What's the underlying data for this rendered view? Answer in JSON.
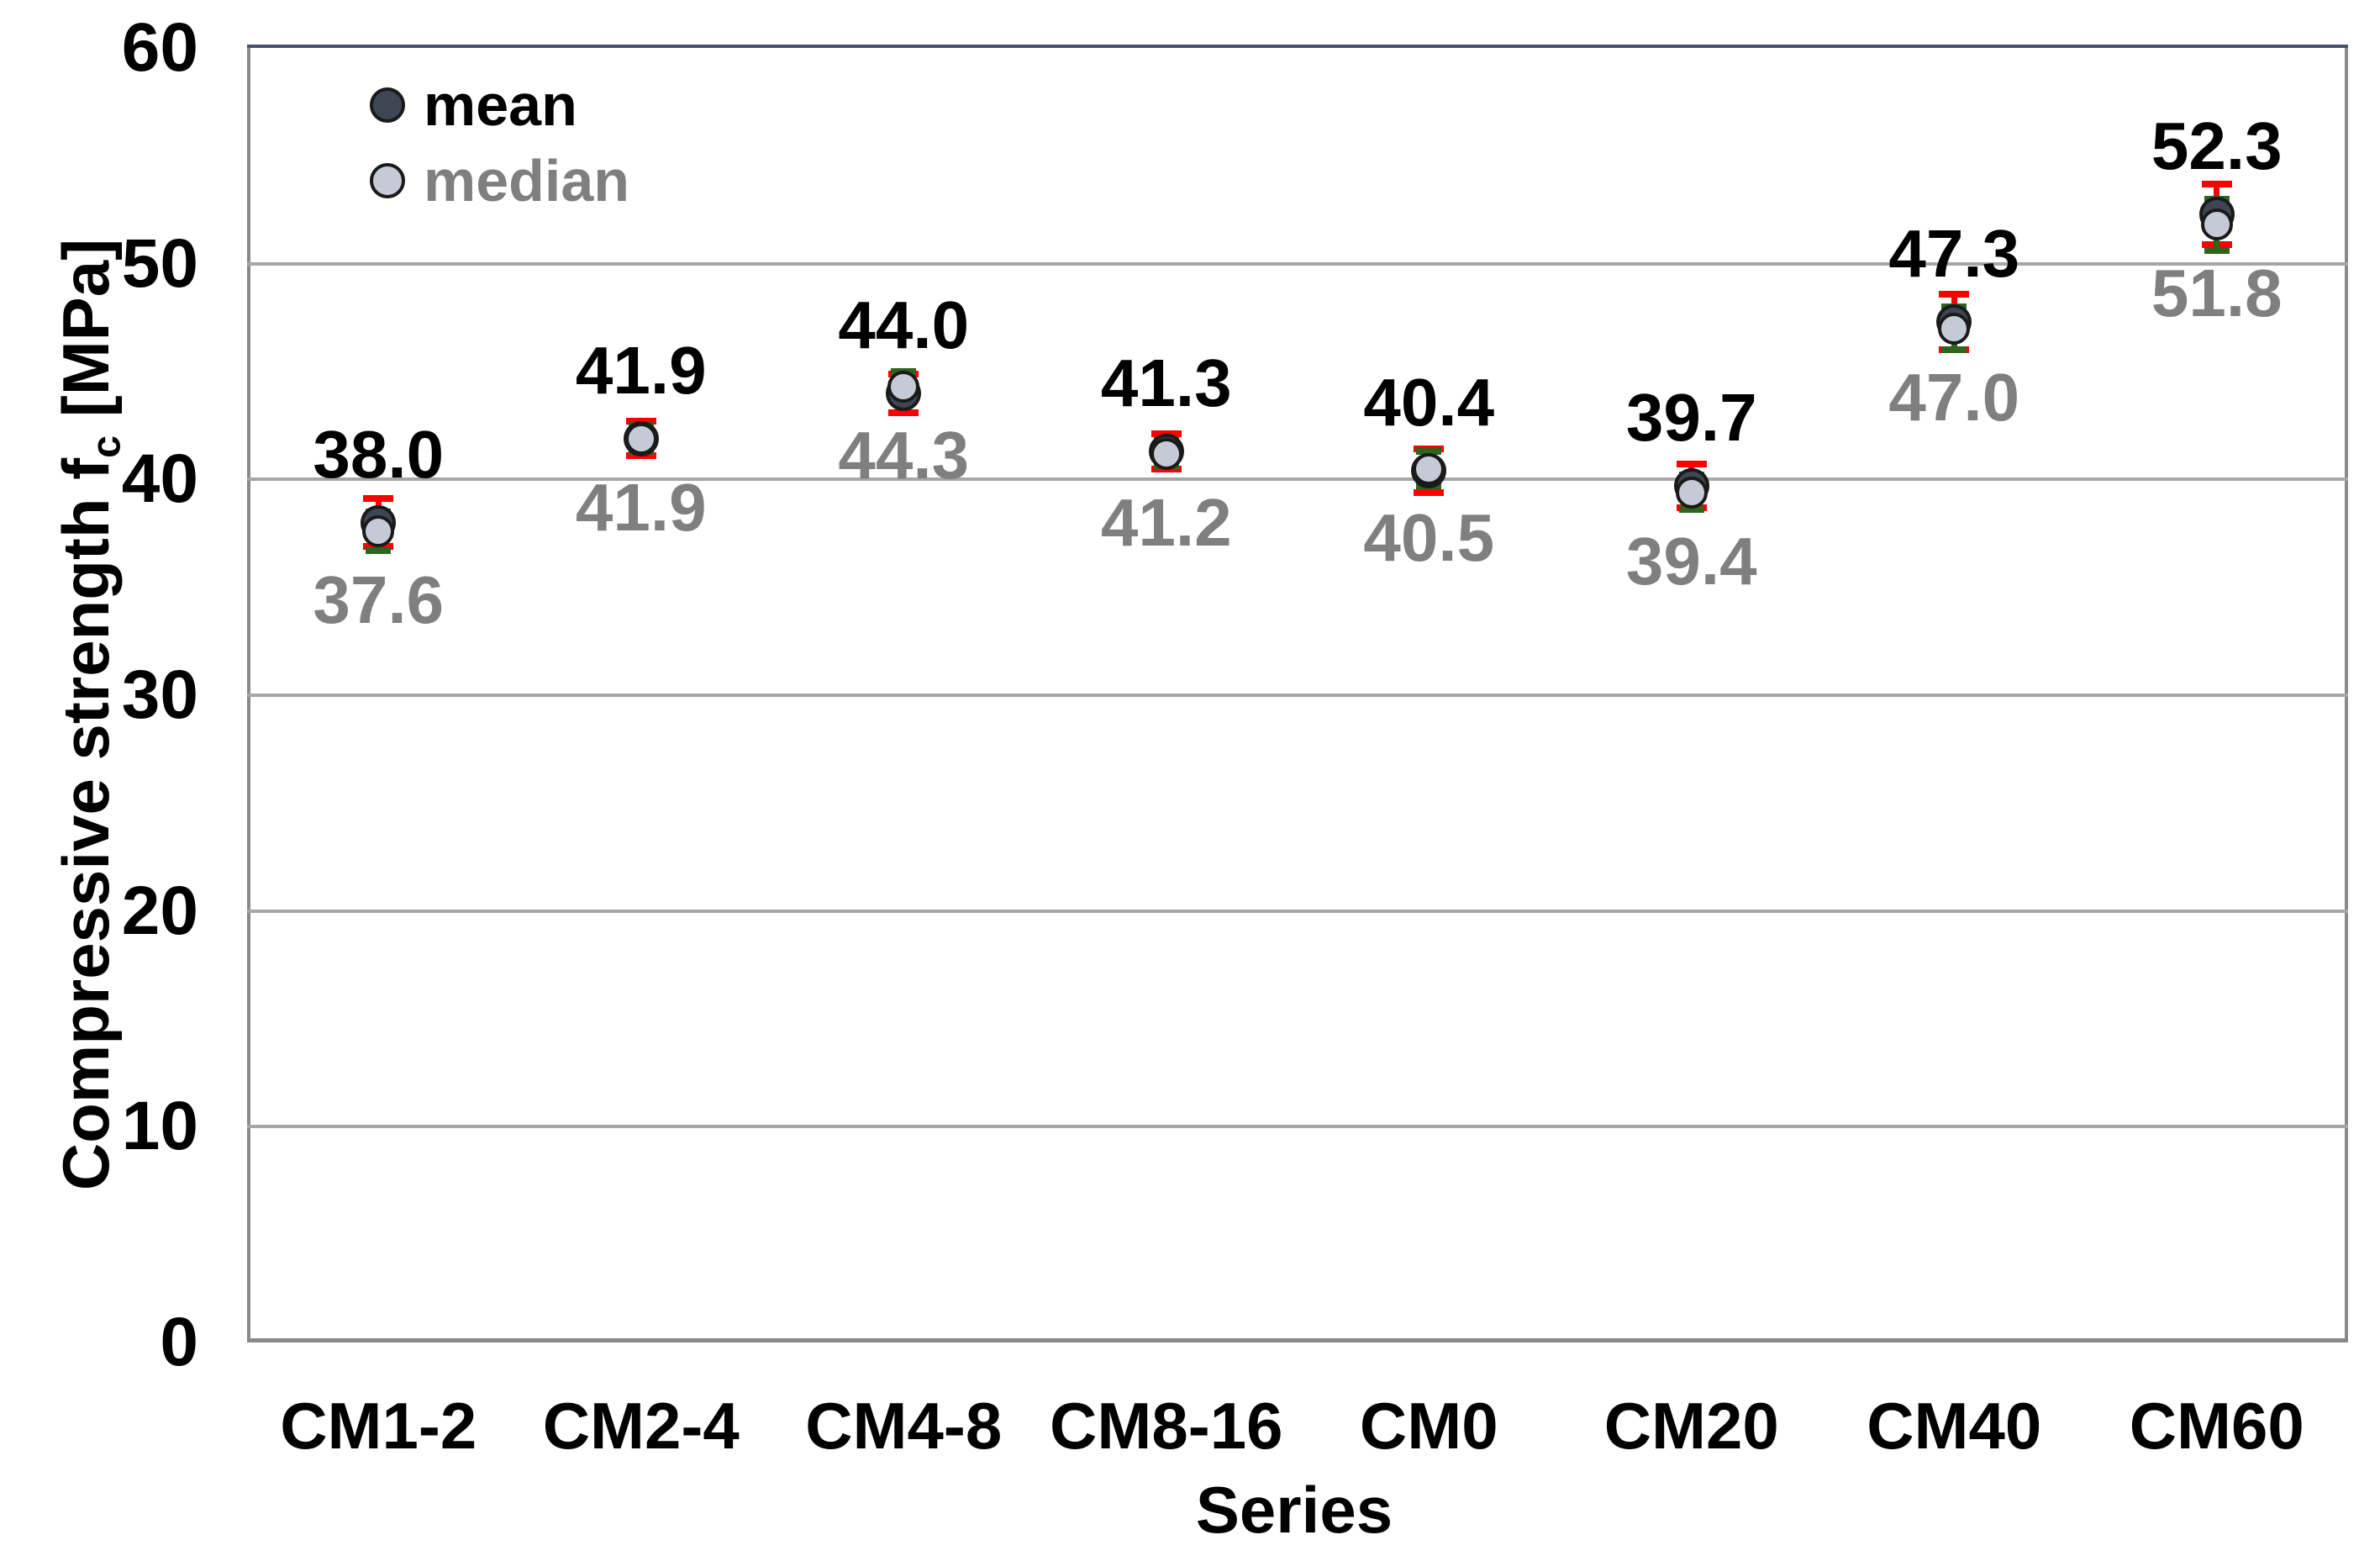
{
  "chart_data": {
    "type": "scatter",
    "title": "",
    "xlabel": "Series",
    "ylabel": "Compressive strength f_c [MPa]",
    "ylabel_parts": {
      "pre": "Compressive strength f",
      "sub": "c",
      "post": " [MPa]"
    },
    "categories": [
      "CM1-2",
      "CM2-4",
      "CM4-8",
      "CM8-16",
      "CM0",
      "CM20",
      "CM40",
      "CM60"
    ],
    "series": [
      {
        "name": "mean",
        "values": [
          38.0,
          41.9,
          44.0,
          41.3,
          40.4,
          39.7,
          47.3,
          52.3
        ],
        "labels": [
          "38.0",
          "41.9",
          "44.0",
          "41.3",
          "40.4",
          "39.7",
          "47.3",
          "52.3"
        ],
        "errors": [
          1.1,
          0.8,
          0.9,
          0.8,
          1.0,
          1.0,
          1.3,
          1.4
        ],
        "marker_color": "#3E4553",
        "marker_outline": "#1A1A1A",
        "label_color": "#000000",
        "error_color": "#FF0000"
      },
      {
        "name": "median",
        "values": [
          37.6,
          41.9,
          44.3,
          41.2,
          40.5,
          39.4,
          47.0,
          51.8
        ],
        "labels": [
          "37.6",
          "41.9",
          "44.3",
          "41.2",
          "40.5",
          "39.4",
          "47.0",
          "51.8"
        ],
        "errors": [
          0.9,
          0.6,
          0.7,
          0.6,
          0.8,
          0.8,
          1.0,
          1.2
        ],
        "marker_color": "#C5CBD6",
        "marker_outline": "#1A1A1A",
        "label_color": "#7F7F7F",
        "error_color": "#2E641E"
      }
    ],
    "ylim": [
      0,
      60
    ],
    "yticks": [
      0,
      10,
      20,
      30,
      40,
      50,
      60
    ],
    "grid": "horizontal-only",
    "legend": {
      "position": "top-left",
      "entries": [
        "mean",
        "median"
      ]
    },
    "colors": {
      "gridline": "#A6A6A6",
      "axis_border": "#898989",
      "plot_top_border": "#46536B",
      "background": "#FFFFFF"
    }
  }
}
